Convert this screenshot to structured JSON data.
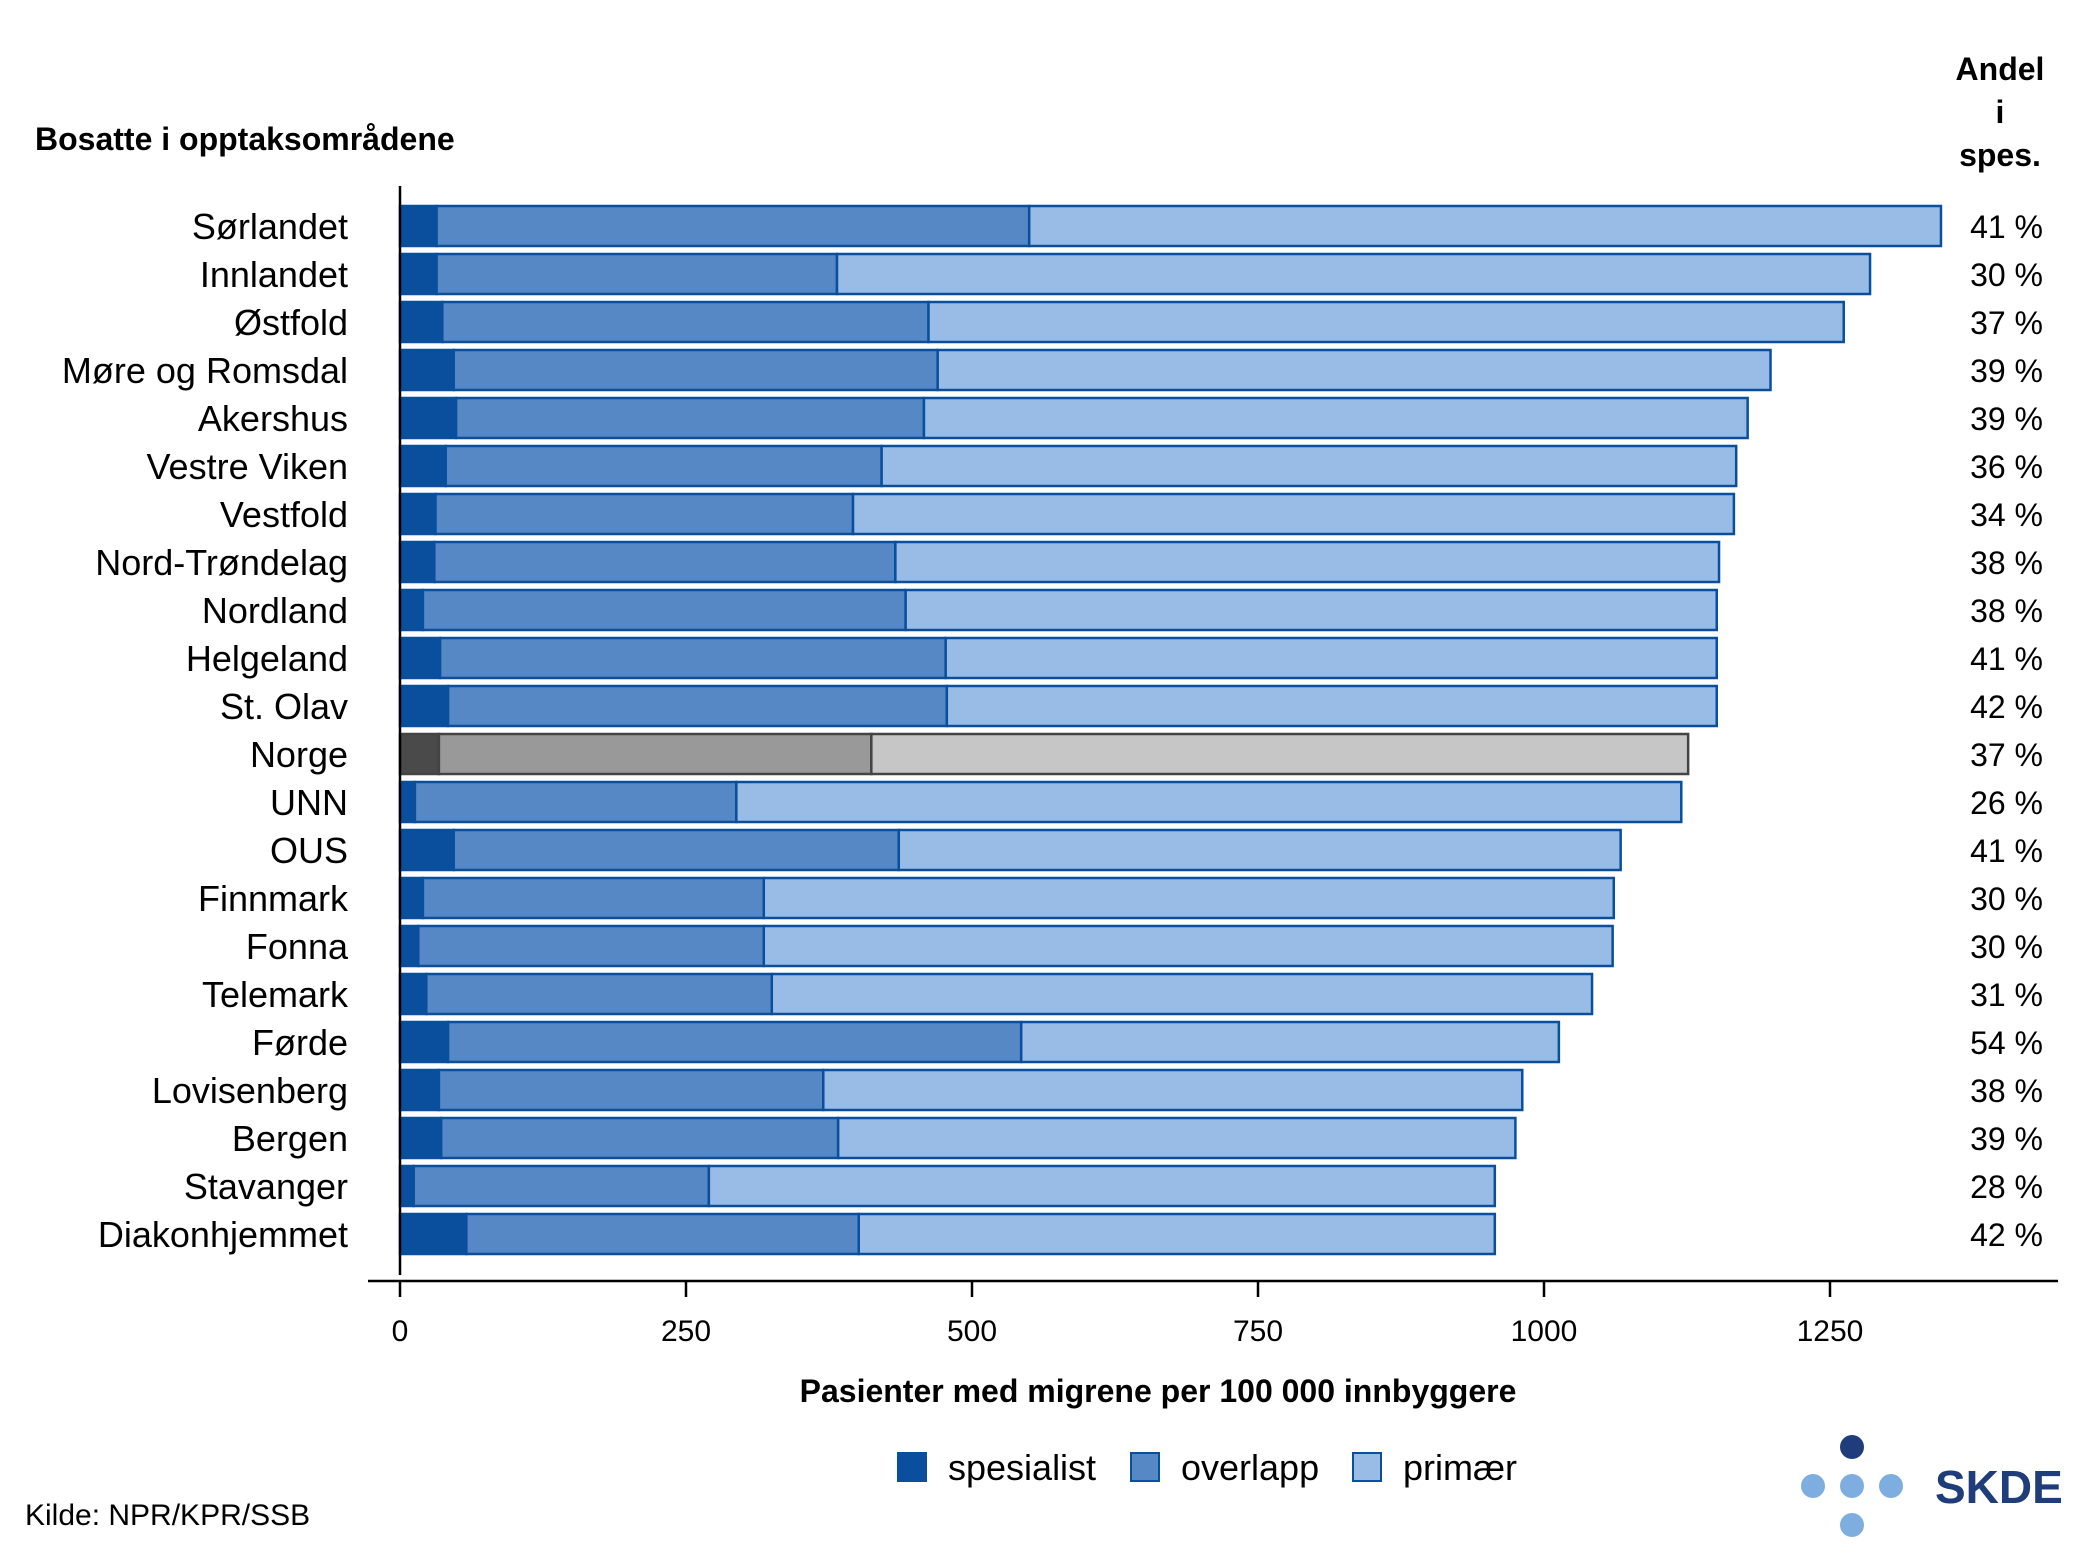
{
  "chart_data": {
    "type": "bar",
    "orientation": "horizontal",
    "stacked": true,
    "header_left": "Bosatte i opptaksområdene",
    "header_right_lines": [
      "Andel",
      "i",
      "spes."
    ],
    "xlabel": "Pasienter med migrene per 100 000 innbyggere",
    "xlim": [
      0,
      1400
    ],
    "xticks": [
      0,
      250,
      500,
      750,
      1000,
      1250
    ],
    "categories": [
      "Sørlandet",
      "Innlandet",
      "Østfold",
      "Møre og Romsdal",
      "Akershus",
      "Vestre Viken",
      "Vestfold",
      "Nord-Trøndelag",
      "Nordland",
      "Helgeland",
      "St. Olav",
      "Norge",
      "UNN",
      "OUS",
      "Finnmark",
      "Fonna",
      "Telemark",
      "Førde",
      "Lovisenberg",
      "Bergen",
      "Stavanger",
      "Diakonhjemmet"
    ],
    "highlight_category": "Norge",
    "series": [
      {
        "name": "spesialist",
        "color": "#0a4f9e",
        "highlight_color": "#4a4a4a",
        "values": [
          32,
          32,
          37,
          47,
          49,
          40,
          31,
          30,
          20,
          35,
          42,
          34,
          13,
          47,
          20,
          16,
          23,
          42,
          34,
          36,
          12,
          58
        ]
      },
      {
        "name": "overlapp",
        "color": "#5588c4",
        "highlight_color": "#999999",
        "values": [
          518,
          350,
          425,
          423,
          409,
          381,
          365,
          403,
          422,
          442,
          436,
          378,
          281,
          389,
          298,
          302,
          302,
          501,
          336,
          347,
          258,
          343
        ]
      },
      {
        "name": "primær",
        "color": "#98bce6",
        "highlight_color": "#c6c6c6",
        "values": [
          797,
          903,
          800,
          728,
          720,
          747,
          770,
          720,
          709,
          674,
          673,
          714,
          826,
          631,
          743,
          742,
          717,
          470,
          611,
          592,
          687,
          556
        ]
      }
    ],
    "share_specialist": [
      "41 %",
      "30 %",
      "37 %",
      "39 %",
      "39 %",
      "36 %",
      "34 %",
      "38 %",
      "38 %",
      "41 %",
      "42 %",
      "37 %",
      "26 %",
      "41 %",
      "30 %",
      "30 %",
      "31 %",
      "54 %",
      "38 %",
      "39 %",
      "28 %",
      "42 %"
    ],
    "legend_position": "bottom",
    "grid": false
  },
  "source": "Kilde: NPR/KPR/SSB",
  "logo": {
    "text": "SKDE",
    "color": "#1f3d7a",
    "dot_dark": "#1f3d7a",
    "dot_light": "#7eaee0"
  }
}
